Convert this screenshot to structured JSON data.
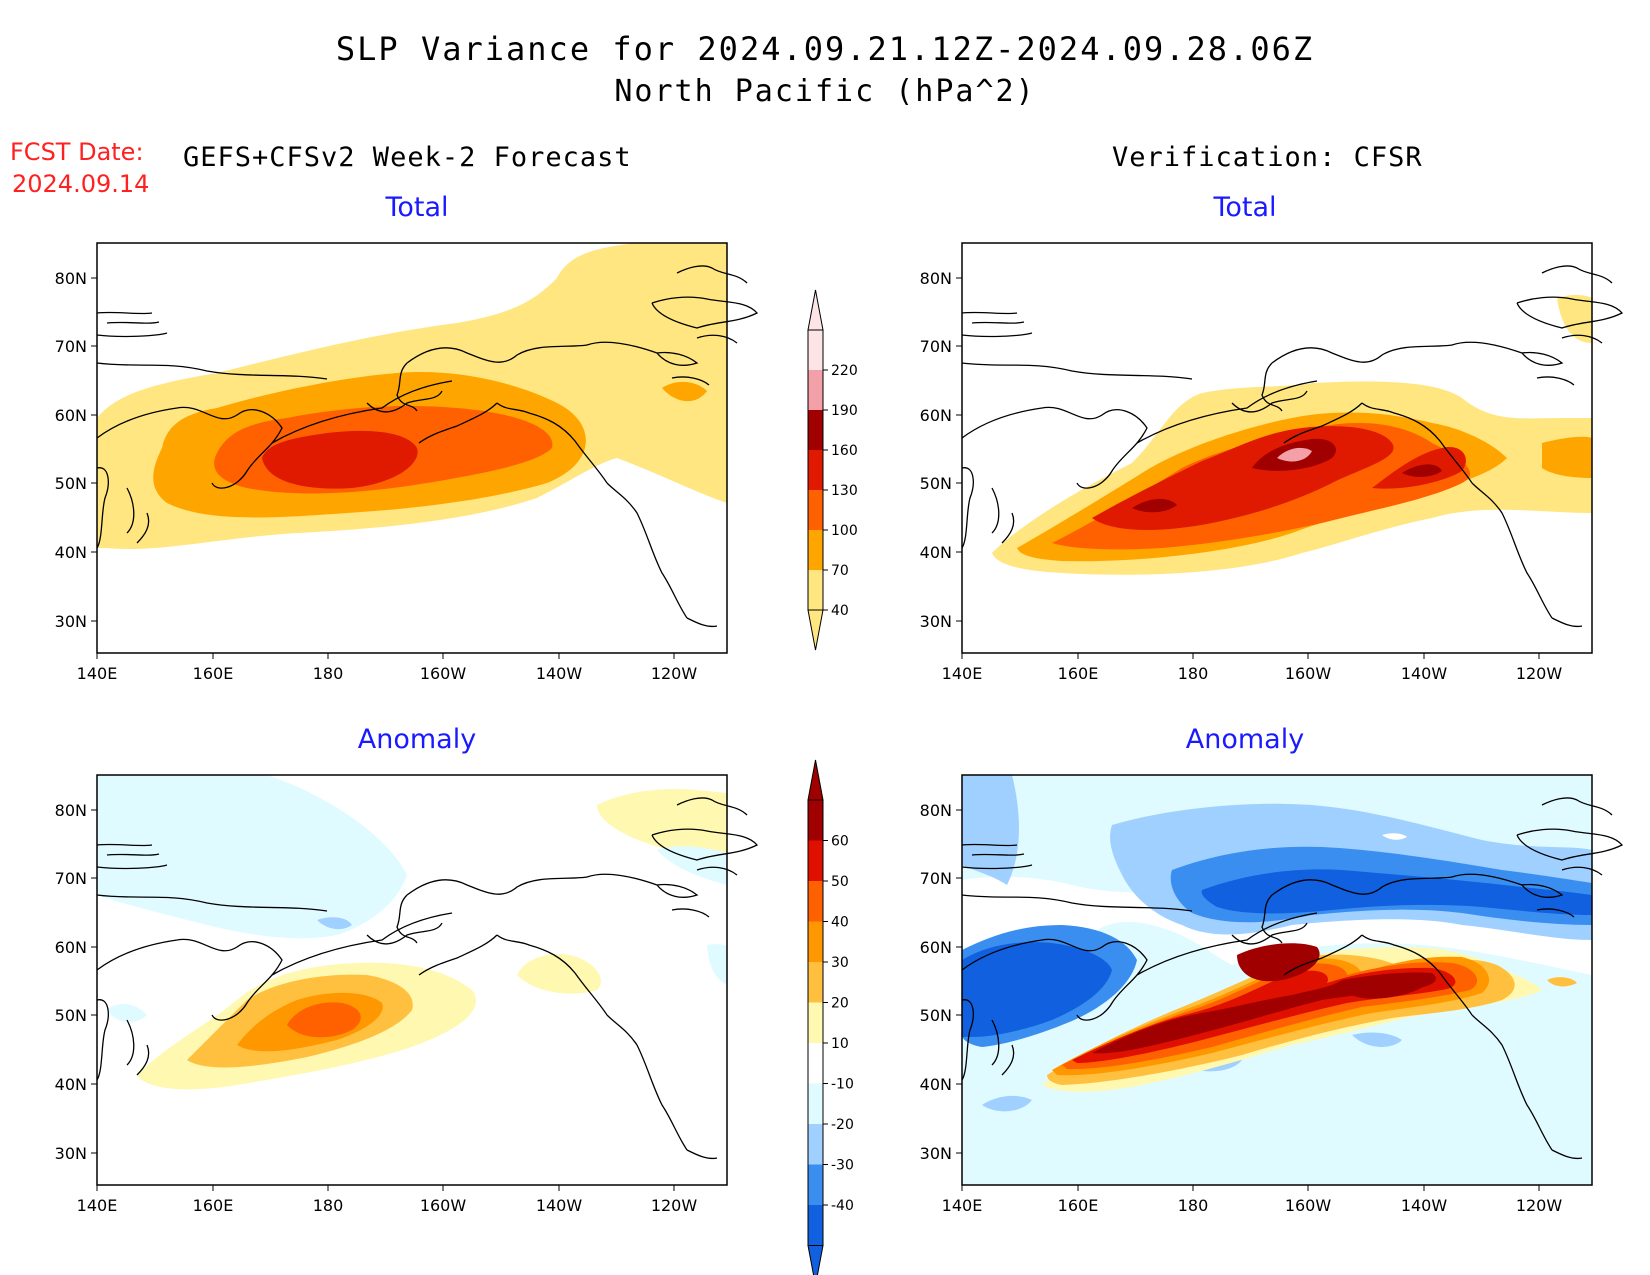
{
  "header": {
    "title_line1": "SLP Variance for 2024.09.21.12Z-2024.09.28.06Z",
    "title_line2": "North Pacific (hPa^2)",
    "fcst_label": "FCST Date:",
    "fcst_date": "2024.09.14",
    "left_column_title": "GEFS+CFSv2 Week-2 Forecast",
    "right_column_title": "Verification: CFSR"
  },
  "panels": {
    "forecast_total": {
      "title": "Total"
    },
    "verification_total": {
      "title": "Total"
    },
    "forecast_anomaly": {
      "title": "Anomaly"
    },
    "verification_anomaly": {
      "title": "Anomaly"
    }
  },
  "axes": {
    "lon_labels": [
      "140E",
      "160E",
      "180",
      "160W",
      "140W",
      "120W"
    ],
    "lat_labels": [
      "80N",
      "70N",
      "60N",
      "50N",
      "40N",
      "30N"
    ]
  },
  "colorbars": {
    "total": {
      "levels": [
        "40",
        "70",
        "100",
        "130",
        "160",
        "190",
        "220"
      ],
      "colors": [
        "#ffe680",
        "#ffa500",
        "#ff6000",
        "#e01a00",
        "#a00000",
        "#f4a0a8",
        "#fde4e6"
      ]
    },
    "anomaly": {
      "levels": [
        "-40",
        "-30",
        "-20",
        "-10",
        "10",
        "20",
        "30",
        "40",
        "50",
        "60"
      ],
      "colors": [
        "#1060e0",
        "#3a8ef0",
        "#a0d0ff",
        "#e0fbff",
        "#ffffff",
        "#fff8b0",
        "#ffc040",
        "#ff9800",
        "#ff6000",
        "#e01000",
        "#a00000"
      ]
    }
  },
  "colors": {
    "title_text": "#000000",
    "fcst_text": "#ff2020",
    "panel_title": "#1a1aff",
    "coastline": "#000000"
  }
}
